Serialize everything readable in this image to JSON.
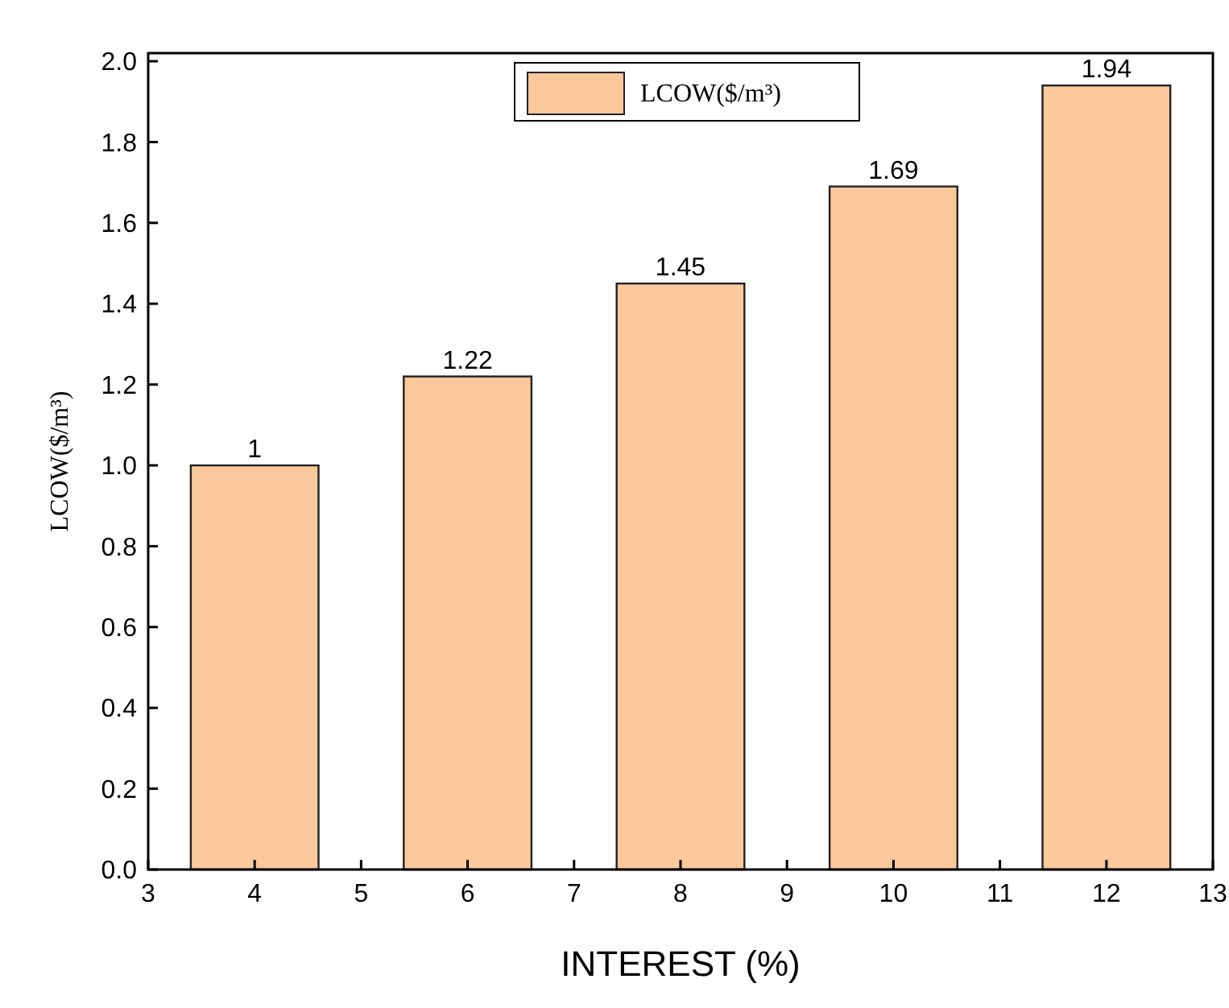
{
  "chart_data": {
    "type": "bar",
    "xlabel": "INTEREST (%)",
    "ylabel": "LCOW($/m³)",
    "x": [
      4,
      6,
      8,
      10,
      12
    ],
    "series": [
      {
        "name": "LCOW($/m³)",
        "color": "#f9c89b",
        "values": [
          1,
          1.22,
          1.45,
          1.69,
          1.94
        ]
      }
    ],
    "xlim": [
      3,
      13
    ],
    "xticks": [
      3,
      4,
      5,
      6,
      7,
      8,
      9,
      10,
      11,
      12,
      13
    ],
    "ylim": [
      0,
      2.02
    ],
    "yticks": [
      {
        "value": 0,
        "label": "0.0"
      },
      {
        "value": 0.2,
        "label": "0.2"
      },
      {
        "value": 0.4,
        "label": "0.4"
      },
      {
        "value": 0.6,
        "label": "0.6"
      },
      {
        "value": 0.8,
        "label": "0.8"
      },
      {
        "value": 1,
        "label": "1.0"
      },
      {
        "value": 1.2,
        "label": "1.2"
      },
      {
        "value": 1.4,
        "label": "1.4"
      },
      {
        "value": 1.6,
        "label": "1.6"
      },
      {
        "value": 1.8,
        "label": "1.8"
      },
      {
        "value": 2,
        "label": "2.0"
      }
    ],
    "data_labels": true,
    "legend": "top",
    "grid": false
  }
}
